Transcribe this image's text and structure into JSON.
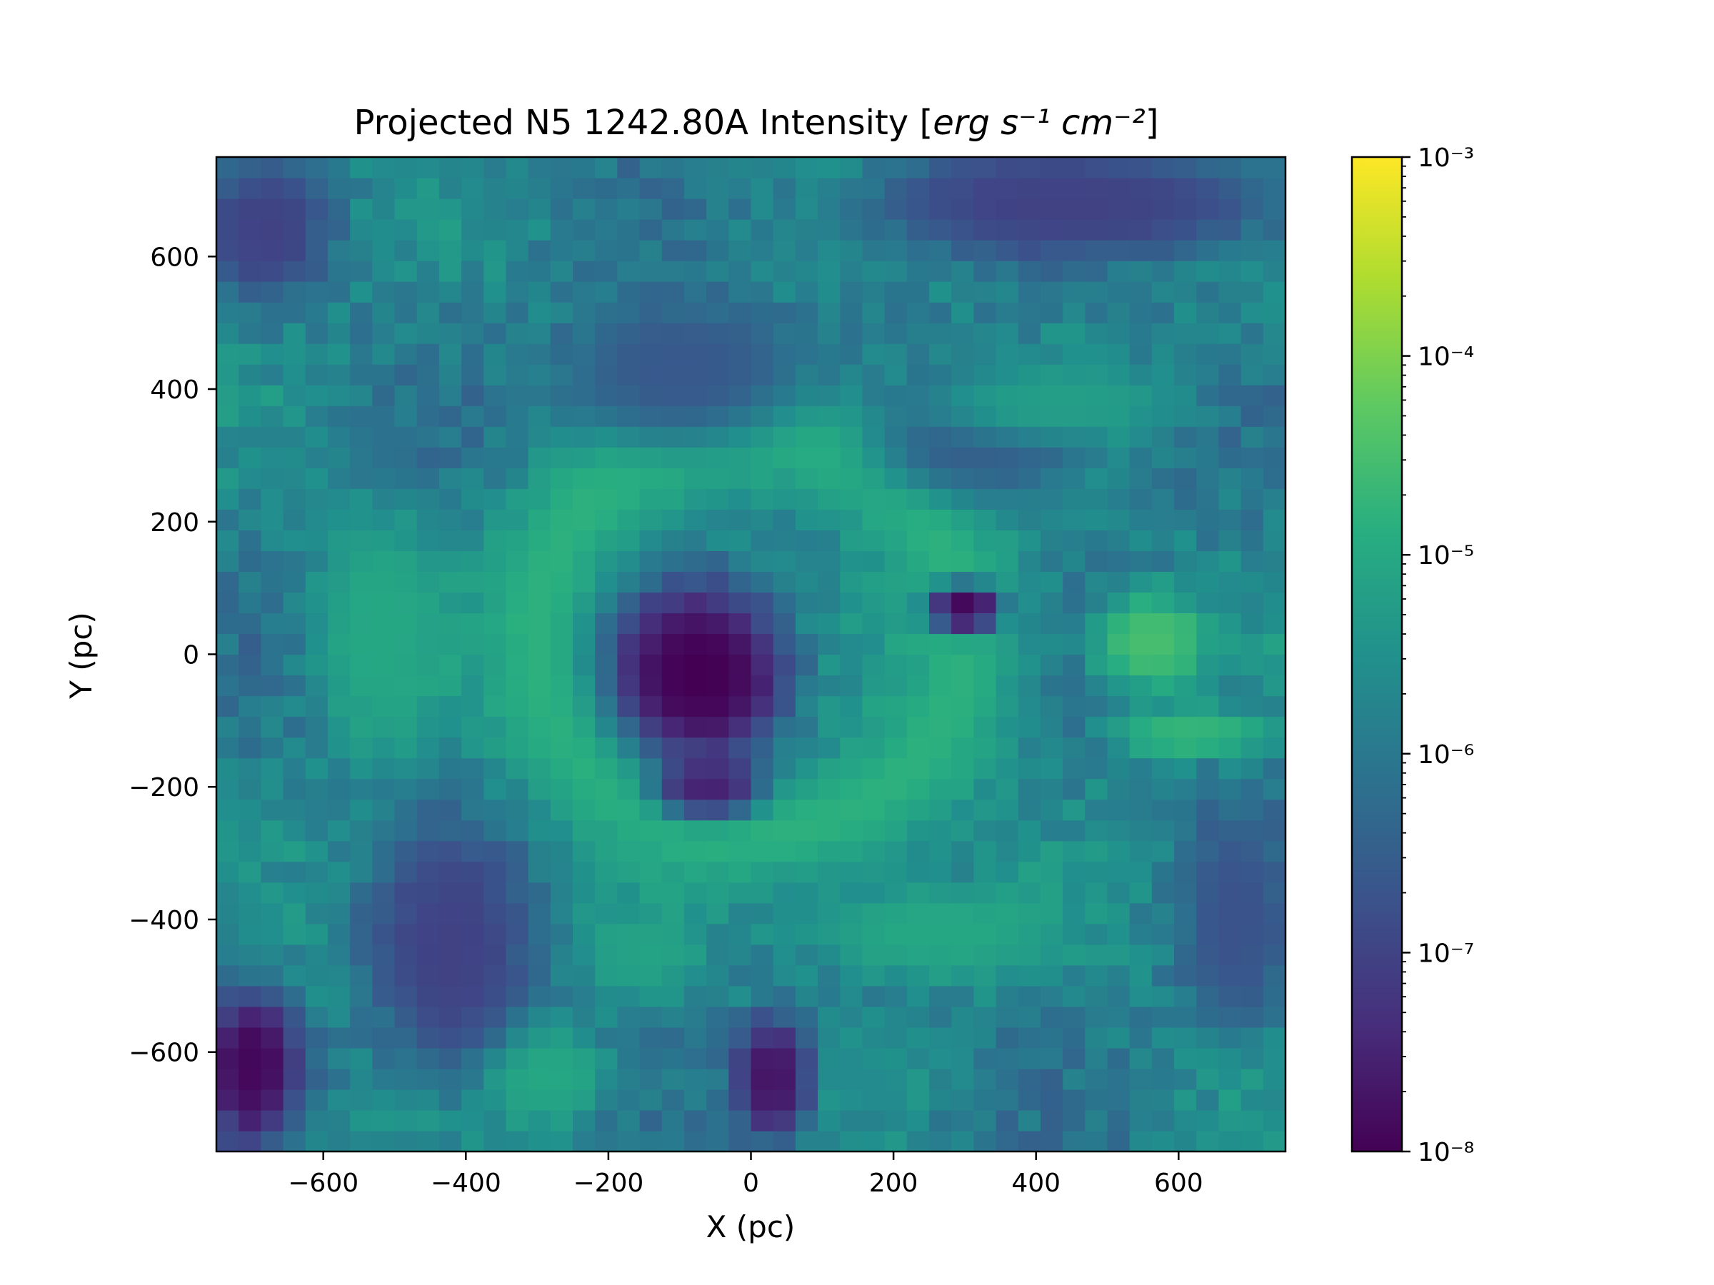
{
  "chart_data": {
    "type": "heatmap",
    "title": {
      "prefix": "Projected N5 1242.80A Intensity [",
      "units_math": "erg s⁻¹ cm⁻²",
      "suffix": "]"
    },
    "xlabel": "X (pc)",
    "ylabel": "Y (pc)",
    "xlim": [
      -750,
      750
    ],
    "ylim": [
      -750,
      750
    ],
    "x_ticks": [
      -600,
      -400,
      -200,
      0,
      200,
      400,
      600
    ],
    "x_tick_labels": [
      "−600",
      "−400",
      "−200",
      "0",
      "200",
      "400",
      "600"
    ],
    "y_ticks": [
      -600,
      -400,
      -200,
      0,
      200,
      400,
      600
    ],
    "y_tick_labels": [
      "−600",
      "−400",
      "−200",
      "0",
      "200",
      "400",
      "600"
    ],
    "colormap": "viridis",
    "color_scale": "log",
    "colorbar": {
      "vmin": 1e-08,
      "vmax": 0.001,
      "ticks": [
        1e-08,
        1e-07,
        1e-06,
        1e-05,
        0.0001,
        0.001
      ],
      "tick_labels": [
        "10⁻⁸",
        "10⁻⁷",
        "10⁻⁶",
        "10⁻⁵",
        "10⁻⁴",
        "10⁻³"
      ]
    },
    "field": {
      "grid": 48,
      "background_log10": -5.8,
      "features": [
        {
          "kind": "shell",
          "x": 0,
          "y": 30,
          "r": 300,
          "width": 100,
          "log10": -4.8
        },
        {
          "kind": "blob",
          "x": -70,
          "y": -30,
          "rx": 130,
          "ry": 140,
          "log10": -8.0
        },
        {
          "kind": "blob",
          "x": -60,
          "y": -200,
          "rx": 80,
          "ry": 50,
          "log10": -7.5
        },
        {
          "kind": "blob",
          "x": 300,
          "y": 70,
          "rx": 55,
          "ry": 40,
          "log10": -7.9
        },
        {
          "kind": "blob",
          "x": -700,
          "y": -620,
          "rx": 70,
          "ry": 120,
          "log10": -7.9
        },
        {
          "kind": "blob",
          "x": -420,
          "y": -450,
          "rx": 120,
          "ry": 200,
          "log10": -7.0
        },
        {
          "kind": "blob",
          "x": 30,
          "y": -640,
          "rx": 60,
          "ry": 100,
          "log10": -7.7
        },
        {
          "kind": "blob",
          "x": 450,
          "y": 680,
          "rx": 320,
          "ry": 90,
          "log10": -7.0
        },
        {
          "kind": "blob",
          "x": -680,
          "y": 640,
          "rx": 90,
          "ry": 110,
          "log10": -7.0
        },
        {
          "kind": "blob",
          "x": -100,
          "y": 430,
          "rx": 180,
          "ry": 120,
          "log10": -6.6
        },
        {
          "kind": "blob",
          "x": 330,
          "y": 320,
          "rx": 160,
          "ry": 90,
          "log10": -6.5
        },
        {
          "kind": "blob",
          "x": 680,
          "y": -400,
          "rx": 80,
          "ry": 180,
          "log10": -6.7
        },
        {
          "kind": "blob",
          "x": 560,
          "y": 20,
          "rx": 90,
          "ry": 80,
          "log10": -4.5
        },
        {
          "kind": "blob",
          "x": 620,
          "y": -120,
          "rx": 120,
          "ry": 40,
          "log10": -4.7
        },
        {
          "kind": "blob",
          "x": -520,
          "y": 30,
          "rx": 100,
          "ry": 200,
          "log10": -5.0
        },
        {
          "kind": "blob",
          "x": 260,
          "y": -420,
          "rx": 200,
          "ry": 80,
          "log10": -5.0
        },
        {
          "kind": "blob",
          "x": -280,
          "y": -640,
          "rx": 90,
          "ry": 80,
          "log10": -5.0
        },
        {
          "kind": "blob",
          "x": -150,
          "y": -450,
          "rx": 90,
          "ry": 70,
          "log10": -5.1
        },
        {
          "kind": "blob",
          "x": 430,
          "y": 380,
          "rx": 180,
          "ry": 60,
          "log10": -5.2
        }
      ]
    }
  }
}
